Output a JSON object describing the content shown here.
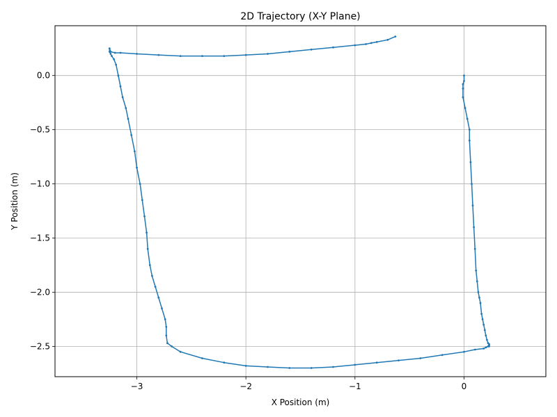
{
  "chart_data": {
    "type": "line",
    "title": "2D Trajectory (X-Y Plane)",
    "xlabel": "X Position (m)",
    "ylabel": "Y Position (m)",
    "xlim": [
      -3.75,
      0.75
    ],
    "ylim": [
      -2.78,
      0.46
    ],
    "grid": true,
    "x_ticks": [
      -3,
      -2,
      -1,
      0
    ],
    "x_tick_labels": [
      "−3",
      "−2",
      "−1",
      "0"
    ],
    "y_ticks": [
      0.0,
      -0.5,
      -1.0,
      -1.5,
      -2.0,
      -2.5
    ],
    "y_tick_labels": [
      "0.0",
      "−0.5",
      "−1.0",
      "−1.5",
      "−2.0",
      "−2.5"
    ],
    "line_color": "#1f77b4",
    "series": [
      {
        "x": [
          0.0,
          0.0,
          -0.01,
          -0.01,
          -0.01,
          0.01,
          0.03,
          0.05,
          0.05,
          0.06,
          0.07,
          0.08,
          0.09,
          0.1,
          0.11,
          0.12,
          0.13,
          0.14,
          0.15,
          0.16,
          0.17,
          0.18,
          0.19,
          0.2,
          0.21,
          0.22,
          0.23,
          0.23,
          0.23,
          0.22,
          0.2,
          0.18,
          0.1,
          0.0,
          -0.2,
          -0.4,
          -0.6,
          -0.8,
          -1.0,
          -1.2,
          -1.4,
          -1.6,
          -1.8,
          -2.0,
          -2.2,
          -2.4,
          -2.6,
          -2.68,
          -2.72,
          -2.73,
          -2.73,
          -2.74,
          -2.77,
          -2.8,
          -2.83,
          -2.86,
          -2.88,
          -2.9,
          -2.91,
          -2.93,
          -2.95,
          -2.97,
          -3.0,
          -3.02,
          -3.05,
          -3.08,
          -3.1,
          -3.13,
          -3.15,
          -3.17,
          -3.19,
          -3.21,
          -3.23,
          -3.24,
          -3.25,
          -3.25,
          -3.24,
          -3.2,
          -3.15,
          -3.0,
          -2.8,
          -2.6,
          -2.4,
          -2.2,
          -2.0,
          -1.8,
          -1.6,
          -1.4,
          -1.2,
          -1.0,
          -0.9,
          -0.85,
          -0.8,
          -0.7,
          -0.63
        ],
        "y": [
          0.0,
          -0.05,
          -0.08,
          -0.12,
          -0.2,
          -0.3,
          -0.4,
          -0.5,
          -0.6,
          -0.8,
          -1.0,
          -1.2,
          -1.4,
          -1.6,
          -1.8,
          -1.9,
          -2.0,
          -2.05,
          -2.1,
          -2.2,
          -2.25,
          -2.3,
          -2.35,
          -2.4,
          -2.44,
          -2.47,
          -2.48,
          -2.49,
          -2.5,
          -2.5,
          -2.51,
          -2.52,
          -2.53,
          -2.55,
          -2.58,
          -2.61,
          -2.63,
          -2.65,
          -2.67,
          -2.69,
          -2.7,
          -2.7,
          -2.69,
          -2.68,
          -2.65,
          -2.61,
          -2.55,
          -2.5,
          -2.47,
          -2.4,
          -2.32,
          -2.25,
          -2.15,
          -2.05,
          -1.95,
          -1.85,
          -1.75,
          -1.6,
          -1.45,
          -1.3,
          -1.15,
          -1.0,
          -0.85,
          -0.7,
          -0.55,
          -0.4,
          -0.3,
          -0.2,
          -0.1,
          0.0,
          0.1,
          0.15,
          0.18,
          0.2,
          0.22,
          0.25,
          0.22,
          0.21,
          0.21,
          0.2,
          0.19,
          0.18,
          0.18,
          0.18,
          0.19,
          0.2,
          0.22,
          0.24,
          0.26,
          0.28,
          0.29,
          0.3,
          0.31,
          0.33,
          0.36
        ]
      }
    ]
  }
}
